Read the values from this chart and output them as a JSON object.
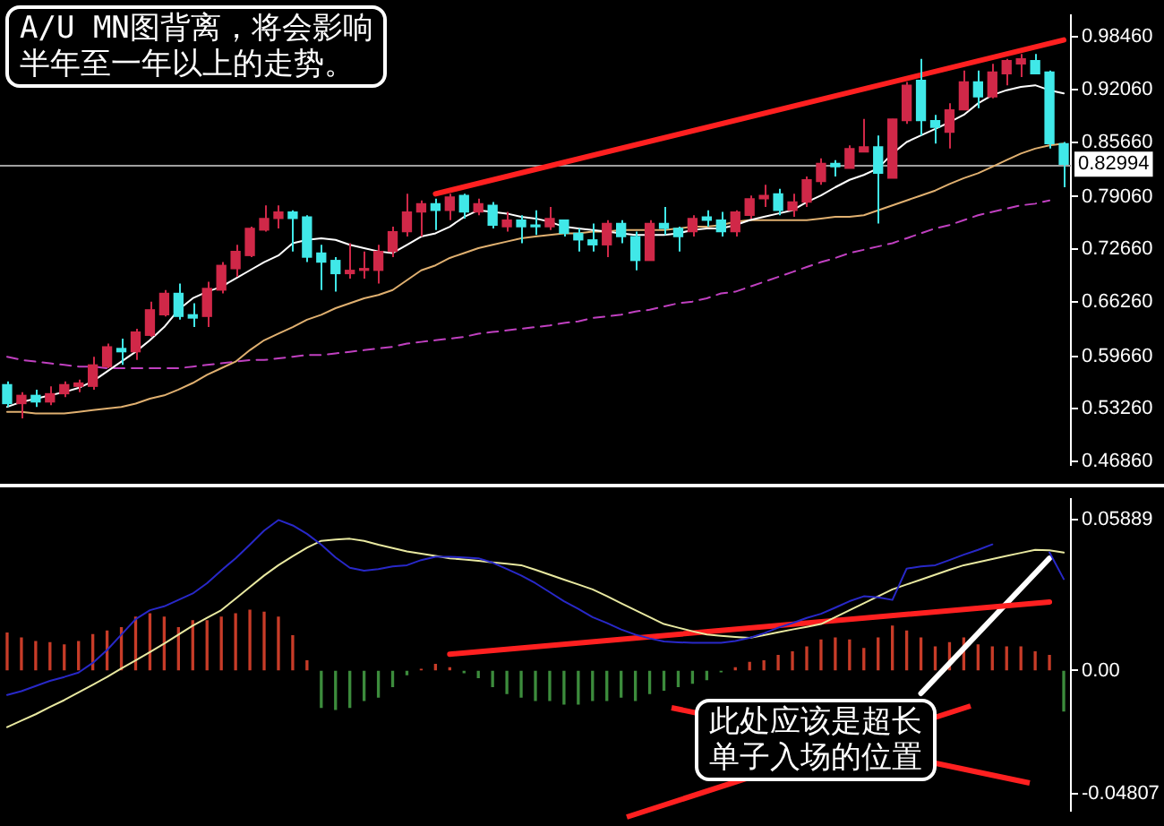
{
  "chart_data": [
    {
      "type": "candlestick",
      "categories": [
        null,
        null,
        null,
        null,
        null,
        null,
        null,
        null,
        null,
        null,
        null,
        null,
        null,
        null,
        null,
        null,
        null,
        null,
        null,
        null,
        null,
        null,
        null,
        null,
        null,
        null,
        null,
        null,
        null,
        null,
        null,
        null,
        null,
        null,
        null,
        null,
        null,
        null,
        null,
        null,
        null,
        null,
        null,
        null,
        null,
        null,
        null,
        null,
        null,
        null,
        null,
        null,
        null,
        null,
        null,
        null,
        null,
        null,
        null,
        null,
        null,
        null,
        null,
        null,
        null,
        null,
        null,
        null,
        null,
        null,
        null,
        null,
        null,
        null,
        null
      ],
      "ohlc": [
        [
          0.562,
          0.566,
          0.535,
          0.539
        ],
        [
          0.539,
          0.553,
          0.521,
          0.549
        ],
        [
          0.549,
          0.556,
          0.535,
          0.541
        ],
        [
          0.541,
          0.56,
          0.537,
          0.551
        ],
        [
          0.551,
          0.566,
          0.547,
          0.562
        ],
        [
          0.56,
          0.568,
          0.553,
          0.564
        ],
        [
          0.56,
          0.596,
          0.556,
          0.586
        ],
        [
          0.584,
          0.612,
          0.582,
          0.608
        ],
        [
          0.606,
          0.618,
          0.586,
          0.602
        ],
        [
          0.602,
          0.63,
          0.592,
          0.626
        ],
        [
          0.622,
          0.663,
          0.62,
          0.653
        ],
        [
          0.647,
          0.677,
          0.645,
          0.673
        ],
        [
          0.673,
          0.685,
          0.641,
          0.645
        ],
        [
          0.647,
          0.661,
          0.632,
          0.643
        ],
        [
          0.645,
          0.687,
          0.632,
          0.679
        ],
        [
          0.677,
          0.711,
          0.673,
          0.707
        ],
        [
          0.703,
          0.732,
          0.693,
          0.724
        ],
        [
          0.719,
          0.754,
          0.717,
          0.752
        ],
        [
          0.75,
          0.78,
          0.748,
          0.764
        ],
        [
          0.764,
          0.78,
          0.752,
          0.772
        ],
        [
          0.772,
          0.774,
          0.724,
          0.764
        ],
        [
          0.766,
          0.768,
          0.711,
          0.717
        ],
        [
          0.722,
          0.732,
          0.677,
          0.711
        ],
        [
          0.713,
          0.717,
          0.675,
          0.697
        ],
        [
          0.697,
          0.734,
          0.691,
          0.701
        ],
        [
          0.701,
          0.724,
          0.691,
          0.703
        ],
        [
          0.701,
          0.732,
          0.685,
          0.724
        ],
        [
          0.724,
          0.754,
          0.717,
          0.748
        ],
        [
          0.748,
          0.794,
          0.742,
          0.772
        ],
        [
          0.772,
          0.786,
          0.742,
          0.782
        ],
        [
          0.782,
          0.788,
          0.75,
          0.774
        ],
        [
          0.774,
          0.794,
          0.762,
          0.79
        ],
        [
          0.792,
          0.794,
          0.764,
          0.772
        ],
        [
          0.772,
          0.788,
          0.768,
          0.782
        ],
        [
          0.78,
          0.784,
          0.752,
          0.756
        ],
        [
          0.754,
          0.772,
          0.748,
          0.762
        ],
        [
          0.762,
          0.768,
          0.734,
          0.754
        ],
        [
          0.756,
          0.774,
          0.744,
          0.754
        ],
        [
          0.754,
          0.778,
          0.75,
          0.764
        ],
        [
          0.762,
          0.762,
          0.742,
          0.746
        ],
        [
          0.746,
          0.752,
          0.724,
          0.738
        ],
        [
          0.738,
          0.758,
          0.724,
          0.732
        ],
        [
          0.732,
          0.762,
          0.717,
          0.758
        ],
        [
          0.758,
          0.762,
          0.734,
          0.742
        ],
        [
          0.742,
          0.748,
          0.701,
          0.713
        ],
        [
          0.713,
          0.762,
          0.713,
          0.758
        ],
        [
          0.758,
          0.778,
          0.744,
          0.752
        ],
        [
          0.752,
          0.754,
          0.724,
          0.742
        ],
        [
          0.748,
          0.768,
          0.742,
          0.764
        ],
        [
          0.766,
          0.774,
          0.754,
          0.762
        ],
        [
          0.762,
          0.772,
          0.742,
          0.748
        ],
        [
          0.748,
          0.774,
          0.742,
          0.772
        ],
        [
          0.768,
          0.792,
          0.764,
          0.788
        ],
        [
          0.788,
          0.805,
          0.778,
          0.792
        ],
        [
          0.794,
          0.8,
          0.768,
          0.774
        ],
        [
          0.774,
          0.794,
          0.766,
          0.784
        ],
        [
          0.784,
          0.815,
          0.778,
          0.811
        ],
        [
          0.809,
          0.837,
          0.805,
          0.831
        ],
        [
          0.831,
          0.835,
          0.815,
          0.827
        ],
        [
          0.825,
          0.853,
          0.825,
          0.849
        ],
        [
          0.845,
          0.885,
          0.845,
          0.851
        ],
        [
          0.851,
          0.865,
          0.758,
          0.819
        ],
        [
          0.813,
          0.885,
          0.813,
          0.885
        ],
        [
          0.883,
          0.93,
          0.879,
          0.926
        ],
        [
          0.932,
          0.958,
          0.865,
          0.883
        ],
        [
          0.883,
          0.89,
          0.855,
          0.875
        ],
        [
          0.869,
          0.904,
          0.849,
          0.896
        ],
        [
          0.896,
          0.944,
          0.896,
          0.93
        ],
        [
          0.93,
          0.944,
          0.898,
          0.912
        ],
        [
          0.912,
          0.952,
          0.91,
          0.942
        ],
        [
          0.94,
          0.958,
          0.926,
          0.956
        ],
        [
          0.952,
          0.964,
          0.936,
          0.958
        ],
        [
          0.956,
          0.964,
          0.94,
          0.94
        ],
        [
          0.942,
          0.944,
          0.849,
          0.855
        ],
        [
          0.855,
          0.857,
          0.802,
          0.83
        ]
      ],
      "colors": [
        "#40e8e8",
        "#d02848",
        "#40e8e8",
        "#d02848",
        "#d02848",
        "#d02848",
        "#d02848",
        "#d02848",
        "#40e8e8",
        "#d02848",
        "#d02848",
        "#d02848",
        "#40e8e8",
        "#40e8e8",
        "#d02848",
        "#d02848",
        "#d02848",
        "#d02848",
        "#d02848",
        "#d02848",
        "#40e8e8",
        "#40e8e8",
        "#40e8e8",
        "#40e8e8",
        "#d02848",
        "#d02848",
        "#d02848",
        "#d02848",
        "#d02848",
        "#d02848",
        "#40e8e8",
        "#d02848",
        "#40e8e8",
        "#d02848",
        "#40e8e8",
        "#d02848",
        "#40e8e8",
        "#40e8e8",
        "#d02848",
        "#40e8e8",
        "#40e8e8",
        "#40e8e8",
        "#d02848",
        "#40e8e8",
        "#40e8e8",
        "#d02848",
        "#40e8e8",
        "#40e8e8",
        "#d02848",
        "#40e8e8",
        "#40e8e8",
        "#d02848",
        "#d02848",
        "#d02848",
        "#40e8e8",
        "#d02848",
        "#d02848",
        "#d02848",
        "#40e8e8",
        "#d02848",
        "#d02848",
        "#40e8e8",
        "#d02848",
        "#d02848",
        "#40e8e8",
        "#40e8e8",
        "#d02848",
        "#d02848",
        "#40e8e8",
        "#d02848",
        "#d02848",
        "#d02848",
        "#40e8e8",
        "#40e8e8",
        "#40e8e8"
      ],
      "series": [
        {
          "type": "line",
          "color": "#ffffff",
          "values": [
            0.535,
            0.541,
            0.545,
            0.549,
            0.553,
            0.558,
            0.566,
            0.578,
            0.59,
            0.602,
            0.616,
            0.632,
            0.653,
            0.667,
            0.675,
            0.681,
            0.691,
            0.701,
            0.711,
            0.719,
            0.734,
            0.738,
            0.74,
            0.738,
            0.732,
            0.728,
            0.724,
            0.722,
            0.732,
            0.742,
            0.746,
            0.754,
            0.766,
            0.774,
            0.772,
            0.77,
            0.766,
            0.764,
            0.76,
            0.754,
            0.752,
            0.75,
            0.748,
            0.746,
            0.744,
            0.744,
            0.744,
            0.746,
            0.75,
            0.752,
            0.752,
            0.756,
            0.762,
            0.766,
            0.77,
            0.774,
            0.784,
            0.792,
            0.802,
            0.811,
            0.817,
            0.825,
            0.843,
            0.857,
            0.865,
            0.873,
            0.881,
            0.89,
            0.904,
            0.914,
            0.92,
            0.924,
            0.926,
            0.92,
            0.916
          ]
        },
        {
          "type": "line",
          "color": "#e0b070",
          "values": [
            0.529,
            0.529,
            0.527,
            0.527,
            0.527,
            0.529,
            0.531,
            0.533,
            0.535,
            0.539,
            0.545,
            0.549,
            0.556,
            0.564,
            0.574,
            0.582,
            0.59,
            0.604,
            0.616,
            0.624,
            0.632,
            0.641,
            0.647,
            0.655,
            0.661,
            0.667,
            0.671,
            0.677,
            0.689,
            0.701,
            0.707,
            0.716,
            0.722,
            0.728,
            0.732,
            0.736,
            0.74,
            0.742,
            0.744,
            0.746,
            0.746,
            0.748,
            0.748,
            0.75,
            0.75,
            0.75,
            0.75,
            0.752,
            0.754,
            0.754,
            0.756,
            0.76,
            0.762,
            0.762,
            0.762,
            0.762,
            0.762,
            0.764,
            0.766,
            0.766,
            0.768,
            0.774,
            0.78,
            0.786,
            0.792,
            0.798,
            0.806,
            0.813,
            0.819,
            0.827,
            0.835,
            0.843,
            0.849,
            0.853,
            0.855
          ]
        },
        {
          "type": "line",
          "color": "#c040c0",
          "line_style": "dashed",
          "values": [
            0.596,
            0.592,
            0.59,
            0.588,
            0.586,
            0.584,
            0.584,
            0.582,
            0.582,
            0.582,
            0.582,
            0.582,
            0.582,
            0.584,
            0.586,
            0.588,
            0.59,
            0.592,
            0.592,
            0.594,
            0.596,
            0.598,
            0.598,
            0.6,
            0.602,
            0.604,
            0.606,
            0.608,
            0.612,
            0.614,
            0.616,
            0.618,
            0.62,
            0.624,
            0.626,
            0.628,
            0.63,
            0.632,
            0.634,
            0.637,
            0.639,
            0.643,
            0.645,
            0.647,
            0.651,
            0.653,
            0.657,
            0.661,
            0.663,
            0.667,
            0.673,
            0.675,
            0.681,
            0.687,
            0.693,
            0.699,
            0.705,
            0.711,
            0.716,
            0.722,
            0.726,
            0.73,
            0.734,
            0.74,
            0.746,
            0.752,
            0.756,
            0.762,
            0.768,
            0.772,
            0.776,
            0.78,
            0.782,
            0.786,
            null
          ]
        },
        {
          "type": "line",
          "color": "#ff2020",
          "values": [
            null,
            null,
            null,
            null,
            null,
            null,
            null,
            null,
            null,
            null,
            null,
            null,
            null,
            null,
            null,
            null,
            null,
            null,
            null,
            null,
            null,
            null,
            null,
            null,
            null,
            null,
            null,
            null,
            null,
            null,
            0.794,
            null,
            null,
            null,
            null,
            null,
            null,
            null,
            null,
            null,
            null,
            null,
            null,
            null,
            null,
            null,
            null,
            null,
            null,
            null,
            null,
            null,
            null,
            null,
            null,
            null,
            null,
            null,
            null,
            null,
            null,
            null,
            null,
            null,
            null,
            null,
            null,
            null,
            null,
            null,
            null,
            null,
            null,
            null,
            0.981
          ]
        }
      ],
      "ylim": [
        0.4646,
        1.0109
      ],
      "yticks": [
        {
          "value": 0.9846,
          "label": "0.98460"
        },
        {
          "value": 0.9206,
          "label": "0.92060"
        },
        {
          "value": 0.8566,
          "label": "0.85660"
        },
        {
          "value": 0.7906,
          "label": "0.79060"
        },
        {
          "value": 0.7266,
          "label": "0.72660"
        },
        {
          "value": 0.6626,
          "label": "0.66260"
        },
        {
          "value": 0.5966,
          "label": "0.59660"
        },
        {
          "value": 0.5326,
          "label": "0.53260"
        },
        {
          "value": 0.4686,
          "label": "0.46860"
        }
      ],
      "ref_lines": [
        {
          "axis": "y",
          "value": 0.82994,
          "label": "0.82994",
          "color": "#a0a0a0"
        }
      ],
      "annotations": [
        "A/U MN图背离，将会影响",
        "半年至一年以上的走势。"
      ],
      "tick_labels": "y",
      "marker": "none"
    },
    {
      "type": "bar",
      "categories": [
        null,
        null,
        null,
        null,
        null,
        null,
        null,
        null,
        null,
        null,
        null,
        null,
        null,
        null,
        null,
        null,
        null,
        null,
        null,
        null,
        null,
        null,
        null,
        null,
        null,
        null,
        null,
        null,
        null,
        null,
        null,
        null,
        null,
        null,
        null,
        null,
        null,
        null,
        null,
        null,
        null,
        null,
        null,
        null,
        null,
        null,
        null,
        null,
        null,
        null,
        null,
        null,
        null,
        null,
        null,
        null,
        null,
        null,
        null,
        null,
        null,
        null,
        null,
        null,
        null,
        null,
        null,
        null,
        null,
        null,
        null,
        null,
        null,
        null,
        null
      ],
      "series": [
        {
          "type": "bar",
          "colors": [
            "#c83c28",
            "#c83c28",
            "#c83c28",
            "#c83c28",
            "#c83c28",
            "#c83c28",
            "#c83c28",
            "#c83c28",
            "#c83c28",
            "#c83c28",
            "#c83c28",
            "#c83c28",
            "#c83c28",
            "#c83c28",
            "#c83c28",
            "#c83c28",
            "#c83c28",
            "#c83c28",
            "#c83c28",
            "#c83c28",
            "#c83c28",
            "#c83c28",
            "#3c8c3c",
            "#3c8c3c",
            "#3c8c3c",
            "#3c8c3c",
            "#3c8c3c",
            "#3c8c3c",
            "#3c8c3c",
            "#c83c28",
            "#c83c28",
            "#c83c28",
            "#3c8c3c",
            "#3c8c3c",
            "#3c8c3c",
            "#3c8c3c",
            "#3c8c3c",
            "#3c8c3c",
            "#3c8c3c",
            "#3c8c3c",
            "#3c8c3c",
            "#3c8c3c",
            "#3c8c3c",
            "#3c8c3c",
            "#3c8c3c",
            "#3c8c3c",
            "#3c8c3c",
            "#3c8c3c",
            "#3c8c3c",
            "#3c8c3c",
            "#3c8c3c",
            "#c83c28",
            "#c83c28",
            "#c83c28",
            "#c83c28",
            "#c83c28",
            "#c83c28",
            "#c83c28",
            "#c83c28",
            "#c83c28",
            "#c83c28",
            "#c83c28",
            "#c83c28",
            "#c83c28",
            "#c83c28",
            "#c83c28",
            "#c83c28",
            "#c83c28",
            "#c83c28",
            "#c83c28",
            "#c83c28",
            "#c83c28",
            "#c83c28",
            "#c83c28",
            "#3c8c3c"
          ],
          "values": [
            0.0146,
            0.0127,
            0.0113,
            0.0108,
            0.01,
            0.0113,
            0.014,
            0.0154,
            0.0167,
            0.0208,
            0.0221,
            0.0208,
            0.0167,
            0.0194,
            0.0194,
            0.0208,
            0.0221,
            0.0235,
            0.0227,
            0.0208,
            0.0135,
            0.0038,
            -0.0143,
            -0.0151,
            -0.0143,
            -0.0116,
            -0.0103,
            -0.0062,
            -0.0016,
            0.0005,
            0.0024,
            0.0011,
            -0.0008,
            -0.0027,
            -0.0062,
            -0.0089,
            -0.0103,
            -0.0116,
            -0.0116,
            -0.013,
            -0.013,
            -0.0116,
            -0.0116,
            -0.0103,
            -0.0116,
            -0.0089,
            -0.0076,
            -0.0062,
            -0.0049,
            -0.0035,
            -0.0005,
            0.0011,
            0.0032,
            0.0038,
            0.0059,
            0.0073,
            0.0092,
            0.0119,
            0.0127,
            0.0119,
            0.0086,
            0.0127,
            0.0173,
            0.0154,
            0.0127,
            0.0092,
            0.0108,
            0.0127,
            0.01,
            0.0092,
            0.0092,
            0.0092,
            0.0073,
            0.0059,
            -0.0157
          ]
        },
        {
          "type": "line",
          "color": "#2828c8",
          "values": [
            -0.0095,
            -0.008,
            -0.006,
            -0.004,
            -0.0025,
            -0.0008,
            0.003,
            0.008,
            0.014,
            0.02,
            0.0235,
            0.025,
            0.0275,
            0.03,
            0.034,
            0.039,
            0.0437,
            0.049,
            0.0545,
            0.0586,
            0.0565,
            0.0532,
            0.049,
            0.044,
            0.04,
            0.0389,
            0.0395,
            0.0405,
            0.041,
            0.043,
            0.0443,
            0.0443,
            0.044,
            0.0437,
            0.042,
            0.0395,
            0.037,
            0.034,
            0.0305,
            0.027,
            0.024,
            0.0208,
            0.0185,
            0.016,
            0.014,
            0.0125,
            0.0113,
            0.011,
            0.0108,
            0.0108,
            0.0108,
            0.0115,
            0.0127,
            0.0145,
            0.0167,
            0.0185,
            0.0205,
            0.0221,
            0.0245,
            0.027,
            0.0289,
            0.0285,
            0.0275,
            0.0397,
            0.0405,
            0.041,
            0.043,
            0.0451,
            0.047,
            0.0491,
            null,
            null,
            null,
            0.046,
            0.0356
          ]
        },
        {
          "type": "line",
          "color": "#e8e8a0",
          "values": [
            -0.022,
            -0.0195,
            -0.017,
            -0.0142,
            -0.0115,
            -0.0085,
            -0.0055,
            -0.0025,
            0.0008,
            0.004,
            0.0072,
            0.0105,
            0.014,
            0.0175,
            0.0205,
            0.0235,
            0.028,
            0.0325,
            0.037,
            0.041,
            0.0445,
            0.0478,
            0.0505,
            0.051,
            0.0513,
            0.0505,
            0.049,
            0.0477,
            0.0464,
            0.0455,
            0.0446,
            0.0437,
            0.0432,
            0.0427,
            0.0421,
            0.0416,
            0.041,
            0.0392,
            0.0373,
            0.0354,
            0.0335,
            0.0316,
            0.029,
            0.0262,
            0.0235,
            0.0208,
            0.0181,
            0.0167,
            0.0153,
            0.014,
            0.0135,
            0.0131,
            0.0127,
            0.0138,
            0.0149,
            0.016,
            0.017,
            0.0181,
            0.0208,
            0.0235,
            0.0262,
            0.0289,
            0.0316,
            0.0335,
            0.0354,
            0.0373,
            0.0392,
            0.041,
            0.0422,
            0.0434,
            0.0446,
            0.0458,
            0.047,
            0.0468,
            0.0459
          ]
        },
        {
          "type": "line",
          "color": "#ff2020",
          "values": [
            null,
            null,
            null,
            null,
            null,
            null,
            null,
            null,
            null,
            null,
            null,
            null,
            null,
            null,
            null,
            null,
            null,
            null,
            null,
            null,
            null,
            null,
            null,
            null,
            null,
            null,
            null,
            null,
            null,
            null,
            null,
            0.0064,
            null,
            null,
            null,
            null,
            null,
            null,
            null,
            null,
            null,
            null,
            null,
            null,
            null,
            null,
            null,
            null,
            null,
            null,
            null,
            null,
            null,
            null,
            null,
            null,
            null,
            null,
            null,
            null,
            null,
            null,
            null,
            null,
            null,
            null,
            null,
            null,
            null,
            null,
            null,
            null,
            null,
            0.0267,
            null
          ]
        },
        {
          "type": "line",
          "color": "#ffffff",
          "values": [
            null,
            null,
            null,
            null,
            null,
            null,
            null,
            null,
            null,
            null,
            null,
            null,
            null,
            null,
            null,
            null,
            null,
            null,
            null,
            null,
            null,
            null,
            null,
            null,
            null,
            null,
            null,
            null,
            null,
            null,
            null,
            null,
            null,
            null,
            null,
            null,
            null,
            null,
            null,
            null,
            null,
            null,
            null,
            null,
            null,
            null,
            null,
            null,
            null,
            null,
            null,
            null,
            null,
            null,
            null,
            null,
            null,
            null,
            null,
            null,
            null,
            null,
            null,
            null,
            -0.0089,
            null,
            null,
            null,
            null,
            null,
            null,
            null,
            null,
            0.0437,
            null
          ]
        }
      ],
      "ylim": [
        -0.0545,
        0.0667
      ],
      "yticks": [
        {
          "value": 0.05889,
          "label": "0.05889"
        },
        {
          "value": 0,
          "label": "0.00"
        },
        {
          "value": -0.04807,
          "label": "-0.04807"
        }
      ],
      "annotations": [
        "此处应该是超长",
        "单子入场的位置"
      ],
      "tick_labels": "y",
      "marker": "none"
    }
  ]
}
